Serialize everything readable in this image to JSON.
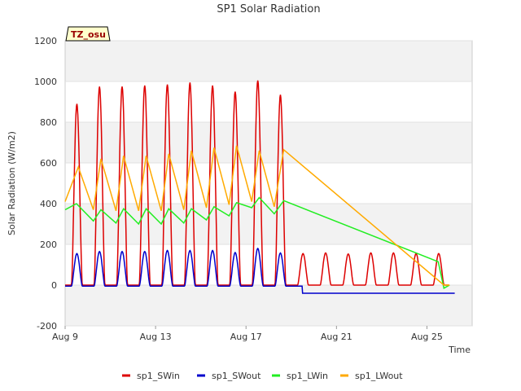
{
  "chart_data": {
    "type": "line",
    "title": "SP1 Solar Radiation",
    "xlabel": "Time",
    "ylabel": "Solar Radiation (W/m2)",
    "ylim": [
      -200,
      1200
    ],
    "yticks": [
      -200,
      0,
      200,
      400,
      600,
      800,
      1000,
      1200
    ],
    "xlim": [
      "Aug 9",
      "Aug 27"
    ],
    "xticks": [
      "Aug 9",
      "Aug 13",
      "Aug 17",
      "Aug 21",
      "Aug 25"
    ],
    "grid": true,
    "legend_position": "bottom",
    "annotation": "TZ_osu",
    "series": [
      {
        "name": "sp1_SWin",
        "color": "#dd0000",
        "daily_peaks": [
          {
            "day": "Aug 9",
            "max": 890
          },
          {
            "day": "Aug 10",
            "max": 975
          },
          {
            "day": "Aug 11",
            "max": 975
          },
          {
            "day": "Aug 12",
            "max": 980
          },
          {
            "day": "Aug 13",
            "max": 985
          },
          {
            "day": "Aug 14",
            "max": 995
          },
          {
            "day": "Aug 15",
            "max": 980
          },
          {
            "day": "Aug 16",
            "max": 950
          },
          {
            "day": "Aug 17",
            "max": 1005
          },
          {
            "day": "Aug 18",
            "max": 935
          },
          {
            "day": "Aug 19",
            "max": 155
          },
          {
            "day": "Aug 20",
            "max": 158
          },
          {
            "day": "Aug 21",
            "max": 153
          },
          {
            "day": "Aug 22",
            "max": 158
          },
          {
            "day": "Aug 23",
            "max": 158
          },
          {
            "day": "Aug 24",
            "max": 155
          },
          {
            "day": "Aug 25",
            "max": 155
          }
        ],
        "night_value": 0
      },
      {
        "name": "sp1_SWout",
        "color": "#0000cc",
        "daily_peaks": [
          {
            "day": "Aug 9",
            "max": 155
          },
          {
            "day": "Aug 10",
            "max": 165
          },
          {
            "day": "Aug 11",
            "max": 165
          },
          {
            "day": "Aug 12",
            "max": 165
          },
          {
            "day": "Aug 13",
            "max": 170
          },
          {
            "day": "Aug 14",
            "max": 170
          },
          {
            "day": "Aug 15",
            "max": 170
          },
          {
            "day": "Aug 16",
            "max": 160
          },
          {
            "day": "Aug 17",
            "max": 180
          },
          {
            "day": "Aug 18",
            "max": 158
          }
        ],
        "night_value": -5,
        "after_aug19_value": -40
      },
      {
        "name": "sp1_LWin",
        "color": "#22ee22",
        "points": [
          {
            "x": "Aug 9 00:00",
            "y": 370
          },
          {
            "x": "Aug 9 12:00",
            "y": 400
          },
          {
            "x": "Aug 10 06:00",
            "y": 315
          },
          {
            "x": "Aug 10 14:00",
            "y": 370
          },
          {
            "x": "Aug 11 06:00",
            "y": 305
          },
          {
            "x": "Aug 11 14:00",
            "y": 375
          },
          {
            "x": "Aug 12 06:00",
            "y": 300
          },
          {
            "x": "Aug 12 14:00",
            "y": 375
          },
          {
            "x": "Aug 13 06:00",
            "y": 300
          },
          {
            "x": "Aug 13 14:00",
            "y": 375
          },
          {
            "x": "Aug 14 06:00",
            "y": 305
          },
          {
            "x": "Aug 14 14:00",
            "y": 375
          },
          {
            "x": "Aug 15 06:00",
            "y": 320
          },
          {
            "x": "Aug 15 14:00",
            "y": 385
          },
          {
            "x": "Aug 16 06:00",
            "y": 340
          },
          {
            "x": "Aug 16 14:00",
            "y": 405
          },
          {
            "x": "Aug 17 06:00",
            "y": 380
          },
          {
            "x": "Aug 17 14:00",
            "y": 430
          },
          {
            "x": "Aug 18 06:00",
            "y": 350
          },
          {
            "x": "Aug 18 16:00",
            "y": 415
          },
          {
            "x": "Aug 25 12:00",
            "y": 115
          },
          {
            "x": "Aug 25 18:00",
            "y": -15
          },
          {
            "x": "Aug 26 00:00",
            "y": 0
          }
        ]
      },
      {
        "name": "sp1_LWout",
        "color": "#ffaa00",
        "points": [
          {
            "x": "Aug 9 00:00",
            "y": 410
          },
          {
            "x": "Aug 9 14:00",
            "y": 580
          },
          {
            "x": "Aug 10 06:00",
            "y": 370
          },
          {
            "x": "Aug 10 14:00",
            "y": 620
          },
          {
            "x": "Aug 11 06:00",
            "y": 365
          },
          {
            "x": "Aug 11 14:00",
            "y": 635
          },
          {
            "x": "Aug 12 06:00",
            "y": 365
          },
          {
            "x": "Aug 12 14:00",
            "y": 635
          },
          {
            "x": "Aug 13 06:00",
            "y": 365
          },
          {
            "x": "Aug 13 14:00",
            "y": 645
          },
          {
            "x": "Aug 14 06:00",
            "y": 370
          },
          {
            "x": "Aug 14 14:00",
            "y": 660
          },
          {
            "x": "Aug 15 06:00",
            "y": 380
          },
          {
            "x": "Aug 15 14:00",
            "y": 675
          },
          {
            "x": "Aug 16 06:00",
            "y": 395
          },
          {
            "x": "Aug 16 14:00",
            "y": 685
          },
          {
            "x": "Aug 17 06:00",
            "y": 410
          },
          {
            "x": "Aug 17 14:00",
            "y": 660
          },
          {
            "x": "Aug 18 06:00",
            "y": 385
          },
          {
            "x": "Aug 18 16:00",
            "y": 665
          },
          {
            "x": "Aug 25 18:00",
            "y": 0
          },
          {
            "x": "Aug 26 00:00",
            "y": 0
          }
        ]
      }
    ]
  }
}
